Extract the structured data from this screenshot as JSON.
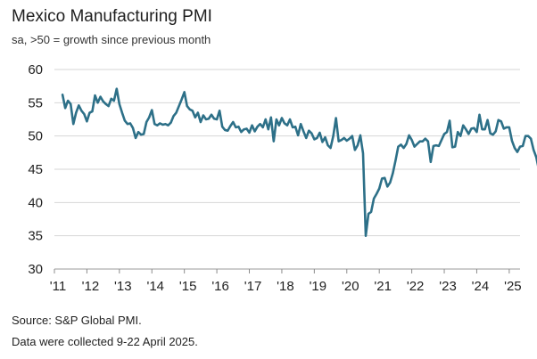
{
  "chart_data": {
    "type": "line",
    "title": "Mexico Manufacturing PMI",
    "subtitle": "sa, >50 = growth since previous month",
    "xlabel": "",
    "ylabel": "",
    "ylim": [
      30,
      60
    ],
    "yticks": [
      30,
      35,
      40,
      45,
      50,
      55,
      60
    ],
    "xlim": [
      2011.0,
      2025.333
    ],
    "xticks": [
      {
        "label": "'11",
        "year": 2011
      },
      {
        "label": "'12",
        "year": 2012
      },
      {
        "label": "'13",
        "year": 2013
      },
      {
        "label": "'14",
        "year": 2014
      },
      {
        "label": "'15",
        "year": 2015
      },
      {
        "label": "'16",
        "year": 2016
      },
      {
        "label": "'17",
        "year": 2017
      },
      {
        "label": "'18",
        "year": 2018
      },
      {
        "label": "'19",
        "year": 2019
      },
      {
        "label": "'20",
        "year": 2020
      },
      {
        "label": "'21",
        "year": 2021
      },
      {
        "label": "'22",
        "year": 2022
      },
      {
        "label": "'23",
        "year": 2023
      },
      {
        "label": "'24",
        "year": 2024
      },
      {
        "label": "'25",
        "year": 2025
      }
    ],
    "series": [
      {
        "name": "Mexico Manufacturing PMI",
        "color": "#2d7088",
        "start": "2011-04",
        "values": [
          56.2,
          54.2,
          55.3,
          54.8,
          51.8,
          53.5,
          54.6,
          53.8,
          53.3,
          52.2,
          53.5,
          53.7,
          56.1,
          55.0,
          55.9,
          55.2,
          54.8,
          54.5,
          55.6,
          55.3,
          57.1,
          54.8,
          53.5,
          52.3,
          51.8,
          51.9,
          51.2,
          49.7,
          50.6,
          50.2,
          50.3,
          52.1,
          52.8,
          53.9,
          51.8,
          51.6,
          51.9,
          51.7,
          51.8,
          51.6,
          52.0,
          53.0,
          53.5,
          54.5,
          55.5,
          56.6,
          54.5,
          54.0,
          53.8,
          52.8,
          53.5,
          52.1,
          53.1,
          52.5,
          52.6,
          53.2,
          52.6,
          52.5,
          53.8,
          51.4,
          50.9,
          50.8,
          51.5,
          52.1,
          51.3,
          51.4,
          50.6,
          51.0,
          51.1,
          50.5,
          51.6,
          50.7,
          51.4,
          51.8,
          51.3,
          52.5,
          51.0,
          52.8,
          49.2,
          52.5,
          51.6,
          52.7,
          51.9,
          51.6,
          52.5,
          51.3,
          51.4,
          50.1,
          51.8,
          50.7,
          49.7,
          50.8,
          50.4,
          49.5,
          49.7,
          50.5,
          49.1,
          49.8,
          48.6,
          48.2,
          50.0,
          52.7,
          49.2,
          49.4,
          49.7,
          49.3,
          49.6,
          50.0,
          47.9,
          48.6,
          50.1,
          47.4,
          35.0,
          38.3,
          38.6,
          40.6,
          41.3,
          42.1,
          43.6,
          43.7,
          42.4,
          43.0,
          44.4,
          46.3,
          48.4,
          48.7,
          48.2,
          48.8,
          50.1,
          49.4,
          48.4,
          48.8,
          49.2,
          49.2,
          49.6,
          49.2,
          46.1,
          48.5,
          48.6,
          48.5,
          49.4,
          50.3,
          50.6,
          52.3,
          48.3,
          48.4,
          50.6,
          50.0,
          51.6,
          51.0,
          50.3,
          51.1,
          51.2,
          50.6,
          53.2,
          51.0,
          51.0,
          52.4,
          50.4,
          50.2,
          50.7,
          52.4,
          52.2,
          51.1,
          51.3,
          51.3,
          49.3,
          48.2,
          47.6,
          48.4,
          48.5,
          50.0,
          50.0,
          49.6,
          47.9,
          46.8,
          44.8
        ]
      }
    ]
  },
  "footer": {
    "source": "Source: S&P Global PMI.",
    "note": "Data were collected 9-22 April 2025."
  }
}
